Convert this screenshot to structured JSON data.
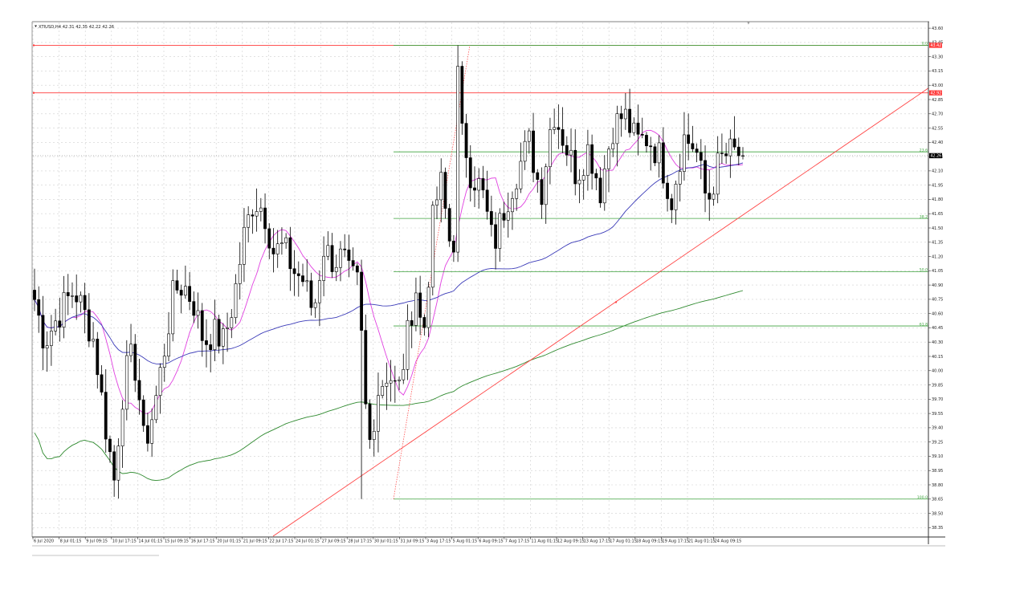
{
  "header": {
    "symbol_info": "XTIUSD,H4  42.31 42.35 42.22 42.26"
  },
  "chart_data": {
    "type": "candlestick",
    "symbol": "XTIUSD",
    "timeframe": "H4",
    "ohlc_header": [
      42.31,
      42.35,
      42.22,
      42.26
    ],
    "ylim": [
      38.26,
      43.66
    ],
    "yticks": [
      "43.60",
      "43.45",
      "43.30",
      "43.15",
      "43.00",
      "42.85",
      "42.70",
      "42.55",
      "42.40",
      "42.25",
      "42.10",
      "41.95",
      "41.80",
      "41.65",
      "41.50",
      "41.35",
      "41.20",
      "41.05",
      "40.90",
      "40.75",
      "40.60",
      "40.45",
      "40.30",
      "40.15",
      "40.00",
      "39.85",
      "39.70",
      "39.55",
      "39.40",
      "39.25",
      "39.10",
      "38.95",
      "38.80",
      "38.65",
      "38.50",
      "38.35"
    ],
    "xticks": [
      "6 Jul 2020",
      "8 Jul 01:15",
      "9 Jul 09:15",
      "10 Jul 17:15",
      "14 Jul 01:15",
      "15 Jul 09:15",
      "16 Jul 17:15",
      "20 Jul 01:15",
      "21 Jul 09:15",
      "22 Jul 17:15",
      "24 Jul 01:15",
      "27 Jul 09:15",
      "28 Jul 17:15",
      "30 Jul 01:15",
      "31 Jul 09:15",
      "3 Aug 17:15",
      "5 Aug 01:15",
      "6 Aug 09:15",
      "7 Aug 17:15",
      "11 Aug 01:15",
      "12 Aug 09:15",
      "13 Aug 17:15",
      "17 Aug 01:15",
      "18 Aug 09:15",
      "19 Aug 17:15",
      "21 Aug 01:15",
      "24 Aug 09:15"
    ],
    "candle_count": 170,
    "last_price": "42.26",
    "last_price_color": "#000000",
    "resistance_lines": [
      {
        "price": 43.42,
        "label": "43.42",
        "color": "#ff3b3b"
      },
      {
        "price": 42.92,
        "label": "42.92",
        "color": "#ff3b3b"
      }
    ],
    "fibonacci": {
      "color": "#3fa33f",
      "levels": [
        {
          "label": "0.0",
          "price": 43.42
        },
        {
          "label": "23.6",
          "price": 42.3
        },
        {
          "label": "38.2",
          "price": 41.6
        },
        {
          "label": "50.0",
          "price": 41.04
        },
        {
          "label": "61.8",
          "price": 40.47
        },
        {
          "label": "100.0",
          "price": 38.65
        }
      ]
    },
    "trendline": {
      "color": "#ff4444"
    },
    "moving_averages": [
      {
        "color": "#e040e0"
      },
      {
        "color": "#3b3bb8"
      },
      {
        "color": "#2f8a2f"
      }
    ],
    "grid": true,
    "chart_position_marker": "▼"
  }
}
